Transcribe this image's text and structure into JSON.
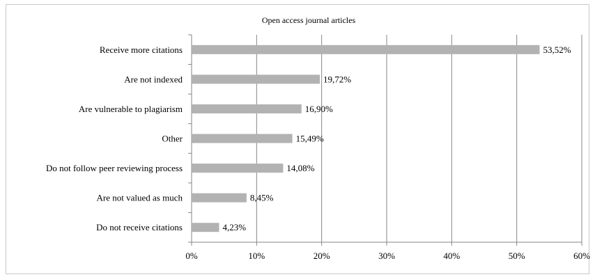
{
  "chart_data": {
    "type": "bar",
    "orientation": "horizontal",
    "title": "Open access journal articles",
    "categories": [
      "Receive more citations",
      "Are not indexed",
      "Are vulnerable to plagiarism",
      "Other",
      "Do not follow peer reviewing  process",
      "Are not valued as much",
      "Do not receive citations"
    ],
    "values": [
      53.52,
      19.72,
      16.9,
      15.49,
      14.08,
      8.45,
      4.23
    ],
    "data_labels": [
      "53,52%",
      "19,72%",
      "16,90%",
      "15,49%",
      "14,08%",
      "8,45%",
      "4,23%"
    ],
    "xlim": [
      0,
      60
    ],
    "x_ticks": [
      "0%",
      "10%",
      "20%",
      "30%",
      "40%",
      "50%",
      "60%"
    ],
    "xlabel": "",
    "ylabel": "",
    "grid": "vertical",
    "legend": "none",
    "colors": {
      "bar": "#b2b2b2",
      "grid": "#868686",
      "axis": "#868686",
      "frame": "#c8c8c8"
    }
  }
}
